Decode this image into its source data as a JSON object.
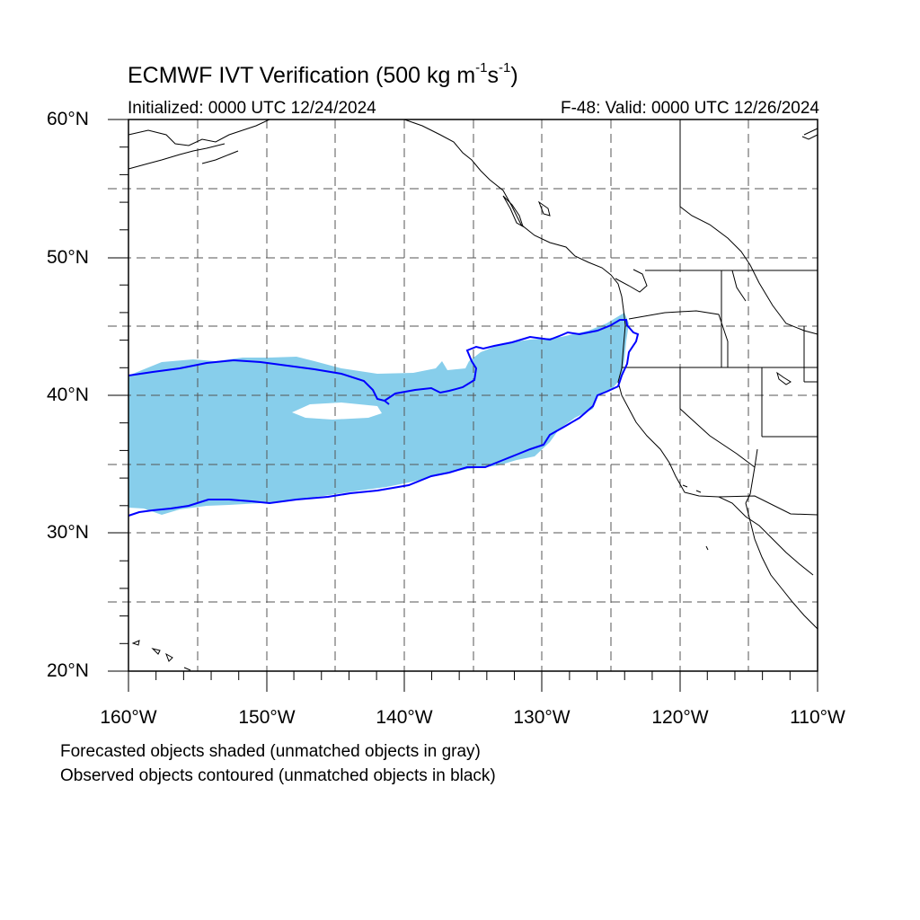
{
  "header": {
    "title_main": "ECMWF IVT Verification (500 kg m",
    "title_exp1": "-1",
    "title_mid": "s",
    "title_exp2": "-1",
    "title_end": ")",
    "initialized": "Initialized: 0000 UTC 12/24/2024",
    "valid": "F-48: Valid: 0000 UTC 12/26/2024"
  },
  "axes": {
    "lat_labels": [
      "60°N",
      "50°N",
      "40°N",
      "30°N",
      "20°N"
    ],
    "lon_labels": [
      "160°W",
      "150°W",
      "140°W",
      "130°W",
      "120°W",
      "110°W"
    ]
  },
  "legend": {
    "line1": "Forecasted objects shaded (unmatched objects in gray)",
    "line2": "Observed objects contoured (unmatched objects in black)"
  },
  "colors": {
    "forecast_shade": "#87ceeb",
    "observed_contour": "#0000ff",
    "coastline": "#000000",
    "grid": "#555555"
  }
}
